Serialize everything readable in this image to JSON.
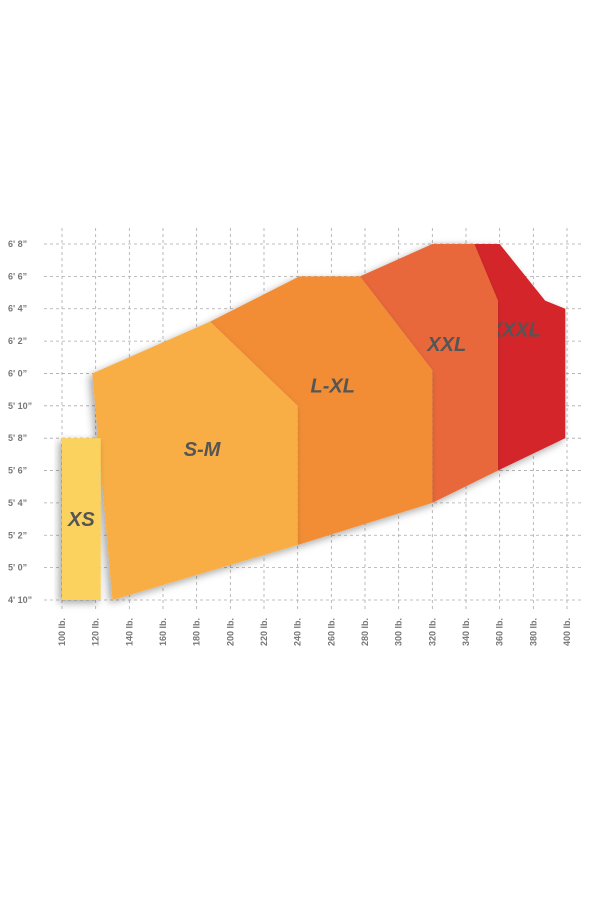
{
  "chart_data": {
    "type": "polygon",
    "xticks": [
      {
        "value": 100,
        "label": "100 lb."
      },
      {
        "value": 120,
        "label": "120 lb."
      },
      {
        "value": 140,
        "label": "140 lb."
      },
      {
        "value": 160,
        "label": "160 lb."
      },
      {
        "value": 180,
        "label": "180 lb."
      },
      {
        "value": 200,
        "label": "200 lb."
      },
      {
        "value": 220,
        "label": "220 lb."
      },
      {
        "value": 240,
        "label": "240 lb."
      },
      {
        "value": 260,
        "label": "260 lb."
      },
      {
        "value": 280,
        "label": "280 lb."
      },
      {
        "value": 300,
        "label": "300 lb."
      },
      {
        "value": 320,
        "label": "320 lb."
      },
      {
        "value": 340,
        "label": "340 lb."
      },
      {
        "value": 360,
        "label": "360 lb."
      },
      {
        "value": 380,
        "label": "380 lb."
      },
      {
        "value": 400,
        "label": "400 lb."
      }
    ],
    "yticks": [
      {
        "value": 58,
        "label": "4' 10”"
      },
      {
        "value": 60,
        "label": "5' 0”"
      },
      {
        "value": 62,
        "label": "5' 2”"
      },
      {
        "value": 64,
        "label": "5' 4”"
      },
      {
        "value": 66,
        "label": "5' 6”"
      },
      {
        "value": 68,
        "label": "5' 8”"
      },
      {
        "value": 70,
        "label": "5' 10”"
      },
      {
        "value": 72,
        "label": "6' 0”"
      },
      {
        "value": 74,
        "label": "6' 2”"
      },
      {
        "value": 76,
        "label": "6' 4”"
      },
      {
        "value": 78,
        "label": "6' 6”"
      },
      {
        "value": 80,
        "label": "6' 8”"
      }
    ],
    "xlim": [
      100,
      400
    ],
    "ylim": [
      58,
      80
    ],
    "grid": true,
    "series": [
      {
        "name": "XXXL",
        "color": "#d4282b",
        "x": [
          320,
          360,
          387,
          399,
          399,
          359,
          359
        ],
        "y": [
          80,
          80,
          76.5,
          76,
          68,
          66,
          76.5
        ]
      },
      {
        "name": "XXL",
        "color": "#e8683a",
        "x": [
          277,
          320,
          345,
          359,
          359,
          320,
          320
        ],
        "y": [
          78,
          80,
          80,
          76.5,
          66,
          64,
          72.2
        ]
      },
      {
        "name": "L-XL",
        "color": "#f28d35",
        "x": [
          188,
          241,
          277,
          320,
          320,
          240,
          240
        ],
        "y": [
          75.2,
          78,
          78,
          72.2,
          64,
          61.4,
          70
        ]
      },
      {
        "name": "S-M",
        "color": "#f8ae45",
        "x": [
          118,
          188,
          240,
          240,
          130
        ],
        "y": [
          72,
          75.2,
          70,
          61.4,
          58
        ]
      },
      {
        "name": "XS",
        "color": "#fcd25e",
        "x": [
          100,
          100,
          123,
          123
        ],
        "y": [
          58,
          68,
          68,
          58
        ]
      }
    ]
  }
}
